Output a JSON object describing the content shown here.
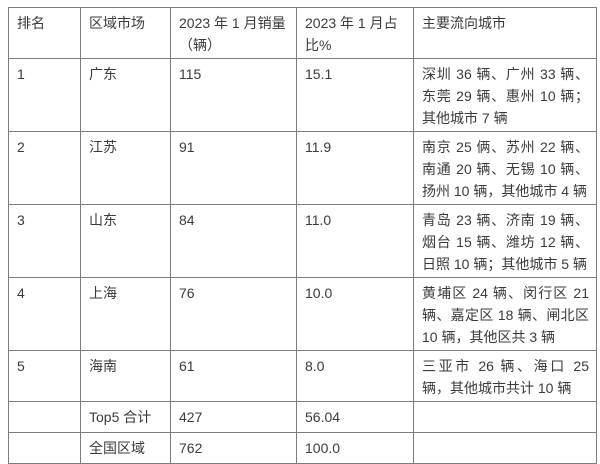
{
  "colors": {
    "border": "#7d7d7d",
    "text": "#3b3b3b",
    "background": "#ffffff"
  },
  "chart_data": {
    "type": "table",
    "columns": [
      "排名",
      "区域市场",
      "2023 年 1 月销量（辆）",
      "2023 年 1 月占比%",
      "主要流向城市"
    ],
    "rows": [
      [
        "1",
        "广东",
        "115",
        "15.1",
        "深圳 36 辆、广州 33 辆、东莞 29 辆、惠州 10 辆；其他城市 7 辆"
      ],
      [
        "2",
        "江苏",
        "91",
        "11.9",
        "南京 25 俩、苏州 22 辆、南通 20 辆、无锡 10 辆、扬州 10 辆，其他城市 4 辆"
      ],
      [
        "3",
        "山东",
        "84",
        "11.0",
        "青岛 23 辆、济南 19 辆、烟台 15 辆、潍坊 12 辆、日照 10 辆；其他城市 5 辆"
      ],
      [
        "4",
        "上海",
        "76",
        "10.0",
        "黄埔区 24 辆、闵行区 21 辆、嘉定区 18 辆、闸北区 10 辆，其他区共 3 辆"
      ],
      [
        "5",
        "海南",
        "61",
        "8.0",
        "三亚市 26 辆、海口 25 辆，其他城市共计 10 辆"
      ],
      [
        "",
        "Top5 合计",
        "427",
        "56.04",
        ""
      ],
      [
        "",
        "全国区域",
        "762",
        "100.0",
        ""
      ]
    ]
  }
}
